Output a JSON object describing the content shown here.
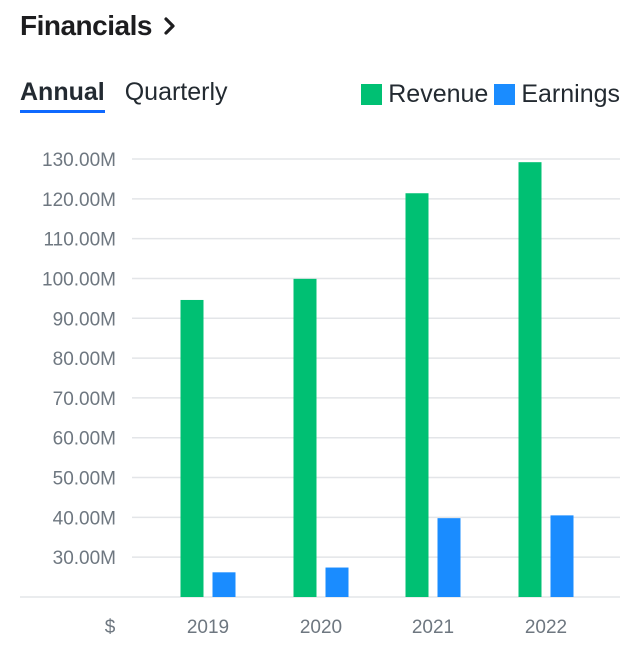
{
  "header": {
    "title": "Financials",
    "chevron_icon": "chevron-right-icon"
  },
  "tabs": [
    {
      "label": "Annual",
      "active": true
    },
    {
      "label": "Quarterly",
      "active": false
    }
  ],
  "legend": [
    {
      "label": "Revenue",
      "color": "#00c073"
    },
    {
      "label": "Earnings",
      "color": "#1a8cff"
    }
  ],
  "chart_data": {
    "type": "bar",
    "title": "Financials",
    "categories": [
      "2019",
      "2020",
      "2021",
      "2022"
    ],
    "series": [
      {
        "name": "Revenue",
        "color": "#00c073",
        "values": [
          94.6,
          99.9,
          121.4,
          129.2
        ]
      },
      {
        "name": "Earnings",
        "color": "#1a8cff",
        "values": [
          26.2,
          27.4,
          39.8,
          40.5
        ]
      }
    ],
    "ylim": [
      20,
      130
    ],
    "yticks": [
      130,
      120,
      110,
      100,
      90,
      80,
      70,
      60,
      50,
      40,
      30
    ],
    "ytick_labels": [
      "130.00M",
      "120.00M",
      "110.00M",
      "100.00M",
      "90.00M",
      "80.00M",
      "70.00M",
      "60.00M",
      "50.00M",
      "40.00M",
      "30.00M"
    ],
    "currency_label": "$",
    "xlabel": "",
    "ylabel": "",
    "grid": true,
    "legend_position": "top-right"
  }
}
